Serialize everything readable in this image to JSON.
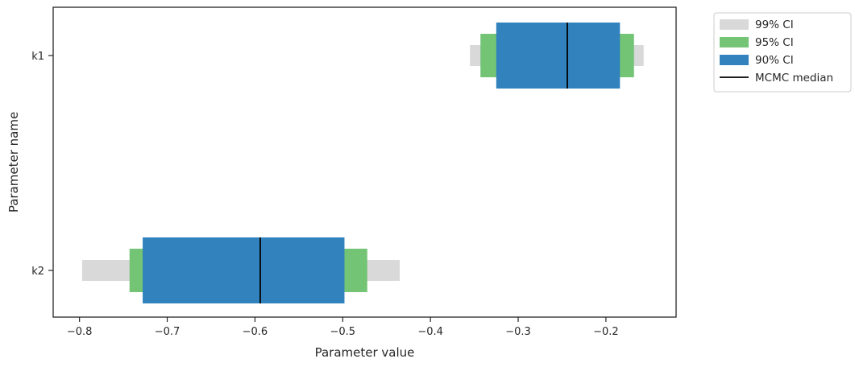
{
  "chart_data": {
    "type": "interval",
    "title": "",
    "xlabel": "Parameter value",
    "ylabel": "Parameter name",
    "xlim": [
      -0.83,
      -0.12
    ],
    "xticks": [
      -0.8,
      -0.7,
      -0.6,
      -0.5,
      -0.4,
      -0.3,
      -0.2
    ],
    "xtick_labels": [
      "−0.8",
      "−0.7",
      "−0.6",
      "−0.5",
      "−0.4",
      "−0.3",
      "−0.2"
    ],
    "categories": [
      "k1",
      "k2"
    ],
    "grid": false,
    "legend_position": "outside-top-right",
    "legend": [
      {
        "label": "99% CI",
        "kind": "patch",
        "color": "#d9d9d9"
      },
      {
        "label": "95% CI",
        "kind": "patch",
        "color": "#74c476"
      },
      {
        "label": "90% CI",
        "kind": "patch",
        "color": "#3182bd"
      },
      {
        "label": "MCMC median",
        "kind": "line",
        "color": "#000000"
      }
    ],
    "series": [
      {
        "name": "99% CI",
        "color": "#d9d9d9",
        "intervals": [
          [
            -0.355,
            -0.157
          ],
          [
            -0.797,
            -0.435
          ]
        ]
      },
      {
        "name": "95% CI",
        "color": "#74c476",
        "intervals": [
          [
            -0.343,
            -0.168
          ],
          [
            -0.743,
            -0.472
          ]
        ]
      },
      {
        "name": "90% CI",
        "color": "#3182bd",
        "intervals": [
          [
            -0.325,
            -0.184
          ],
          [
            -0.728,
            -0.498
          ]
        ]
      },
      {
        "name": "MCMC median",
        "color": "#000000",
        "values": [
          -0.244,
          -0.594
        ]
      }
    ]
  }
}
